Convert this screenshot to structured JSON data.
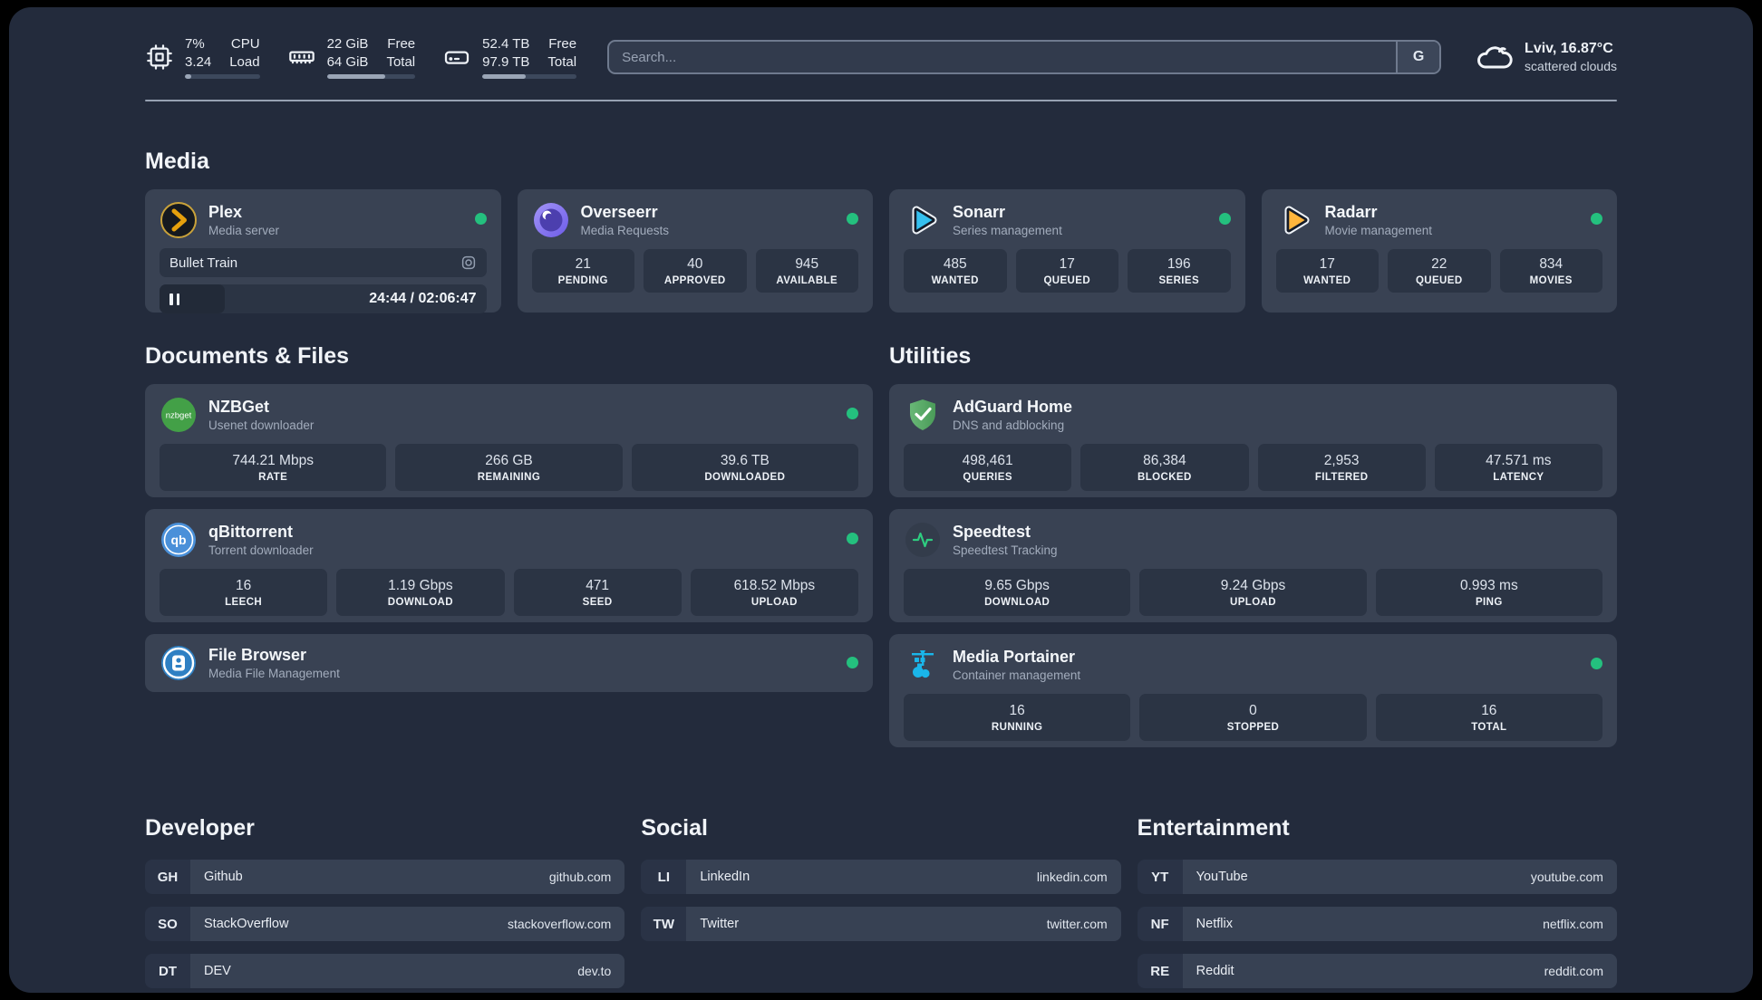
{
  "topbar": {
    "stats": [
      {
        "icon": "cpu-icon",
        "col1_top": "7%",
        "col1_bottom": "3.24",
        "col2_top": "CPU",
        "col2_bottom": "Load",
        "progress": 8
      },
      {
        "icon": "ram-icon",
        "col1_top": "22 GiB",
        "col1_bottom": "64 GiB",
        "col2_top": "Free",
        "col2_bottom": "Total",
        "progress": 66
      },
      {
        "icon": "disk-icon",
        "col1_top": "52.4 TB",
        "col1_bottom": "97.9 TB",
        "col2_top": "Free",
        "col2_bottom": "Total",
        "progress": 46
      }
    ],
    "search": {
      "placeholder": "Search...",
      "engine_label": "G"
    },
    "weather": {
      "headline": "Lviv, 16.87°C",
      "condition": "scattered clouds"
    }
  },
  "media": {
    "title": "Media",
    "plex": {
      "name": "Plex",
      "subtitle": "Media server",
      "now_playing": "Bullet Train",
      "time_display": "24:44 / 02:06:47",
      "progress": 20
    },
    "overseerr": {
      "name": "Overseerr",
      "subtitle": "Media Requests",
      "stats": [
        {
          "value": "21",
          "label": "PENDING"
        },
        {
          "value": "40",
          "label": "APPROVED"
        },
        {
          "value": "945",
          "label": "AVAILABLE"
        }
      ]
    },
    "sonarr": {
      "name": "Sonarr",
      "subtitle": "Series management",
      "stats": [
        {
          "value": "485",
          "label": "WANTED"
        },
        {
          "value": "17",
          "label": "QUEUED"
        },
        {
          "value": "196",
          "label": "SERIES"
        }
      ]
    },
    "radarr": {
      "name": "Radarr",
      "subtitle": "Movie management",
      "stats": [
        {
          "value": "17",
          "label": "WANTED"
        },
        {
          "value": "22",
          "label": "QUEUED"
        },
        {
          "value": "834",
          "label": "MOVIES"
        }
      ]
    }
  },
  "documents": {
    "title": "Documents & Files",
    "nzbget": {
      "name": "NZBGet",
      "subtitle": "Usenet downloader",
      "stats": [
        {
          "value": "744.21 Mbps",
          "label": "RATE"
        },
        {
          "value": "266 GB",
          "label": "REMAINING"
        },
        {
          "value": "39.6 TB",
          "label": "DOWNLOADED"
        }
      ]
    },
    "qbittorrent": {
      "name": "qBittorrent",
      "subtitle": "Torrent downloader",
      "stats": [
        {
          "value": "16",
          "label": "LEECH"
        },
        {
          "value": "1.19 Gbps",
          "label": "DOWNLOAD"
        },
        {
          "value": "471",
          "label": "SEED"
        },
        {
          "value": "618.52 Mbps",
          "label": "UPLOAD"
        }
      ]
    },
    "filebrowser": {
      "name": "File Browser",
      "subtitle": "Media File Management"
    }
  },
  "utilities": {
    "title": "Utilities",
    "adguard": {
      "name": "AdGuard Home",
      "subtitle": "DNS and adblocking",
      "stats": [
        {
          "value": "498,461",
          "label": "QUERIES"
        },
        {
          "value": "86,384",
          "label": "BLOCKED"
        },
        {
          "value": "2,953",
          "label": "FILTERED"
        },
        {
          "value": "47.571 ms",
          "label": "LATENCY"
        }
      ]
    },
    "speedtest": {
      "name": "Speedtest",
      "subtitle": "Speedtest Tracking",
      "stats": [
        {
          "value": "9.65 Gbps",
          "label": "DOWNLOAD"
        },
        {
          "value": "9.24 Gbps",
          "label": "UPLOAD"
        },
        {
          "value": "0.993 ms",
          "label": "PING"
        }
      ]
    },
    "portainer": {
      "name": "Media Portainer",
      "subtitle": "Container management",
      "stats": [
        {
          "value": "16",
          "label": "RUNNING"
        },
        {
          "value": "0",
          "label": "STOPPED"
        },
        {
          "value": "16",
          "label": "TOTAL"
        }
      ]
    }
  },
  "bookmarks": {
    "developer": {
      "title": "Developer",
      "links": [
        {
          "abbr": "GH",
          "name": "Github",
          "url": "github.com"
        },
        {
          "abbr": "SO",
          "name": "StackOverflow",
          "url": "stackoverflow.com"
        },
        {
          "abbr": "DT",
          "name": "DEV",
          "url": "dev.to"
        }
      ]
    },
    "social": {
      "title": "Social",
      "links": [
        {
          "abbr": "LI",
          "name": "LinkedIn",
          "url": "linkedin.com"
        },
        {
          "abbr": "TW",
          "name": "Twitter",
          "url": "twitter.com"
        }
      ]
    },
    "entertainment": {
      "title": "Entertainment",
      "links": [
        {
          "abbr": "YT",
          "name": "YouTube",
          "url": "youtube.com"
        },
        {
          "abbr": "NF",
          "name": "Netflix",
          "url": "netflix.com"
        },
        {
          "abbr": "RE",
          "name": "Reddit",
          "url": "reddit.com"
        }
      ]
    }
  },
  "colors": {
    "online": "#24c07e",
    "card": "#394253",
    "tile": "#2b3444",
    "background": "#232b3c"
  }
}
